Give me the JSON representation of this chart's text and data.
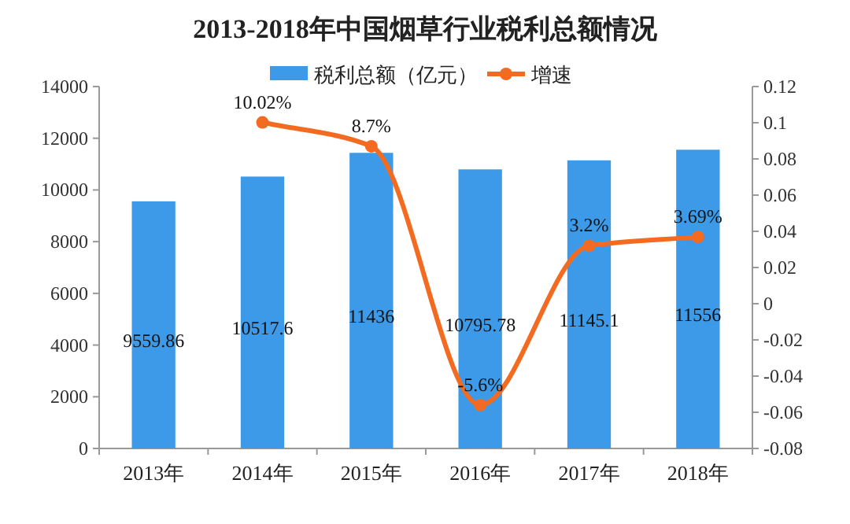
{
  "chart_data": {
    "type": "bar",
    "title": "2013-2018年中国烟草行业税利总额情况",
    "categories": [
      "2013年",
      "2014年",
      "2015年",
      "2016年",
      "2017年",
      "2018年"
    ],
    "series": [
      {
        "name": "税利总额（亿元）",
        "color": "#3d9ae8",
        "values": [
          9559.86,
          10517.6,
          11436,
          10795.78,
          11145.1,
          11556
        ],
        "value_labels": [
          "9559.86",
          "10517.6",
          "11436",
          "10795.78",
          "11145.1",
          "11556"
        ]
      },
      {
        "name": "增速",
        "type": "line",
        "axis": "y2",
        "color": "#f36b21",
        "values": [
          null,
          0.1002,
          0.087,
          -0.056,
          0.032,
          0.0369
        ],
        "value_labels": [
          null,
          "10.02%",
          "8.7%",
          "-5.6%",
          "3.2%",
          "3.69%"
        ]
      }
    ],
    "ylim": [
      0,
      14000
    ],
    "yticks": [
      0,
      2000,
      4000,
      6000,
      8000,
      10000,
      12000,
      14000
    ],
    "y2lim": [
      -0.08,
      0.12
    ],
    "y2ticks": [
      -0.08,
      -0.06,
      -0.04,
      -0.02,
      0,
      0.02,
      0.04,
      0.06,
      0.08,
      0.1,
      0.12
    ],
    "legend": "top",
    "grid": false,
    "marker": "circle"
  }
}
